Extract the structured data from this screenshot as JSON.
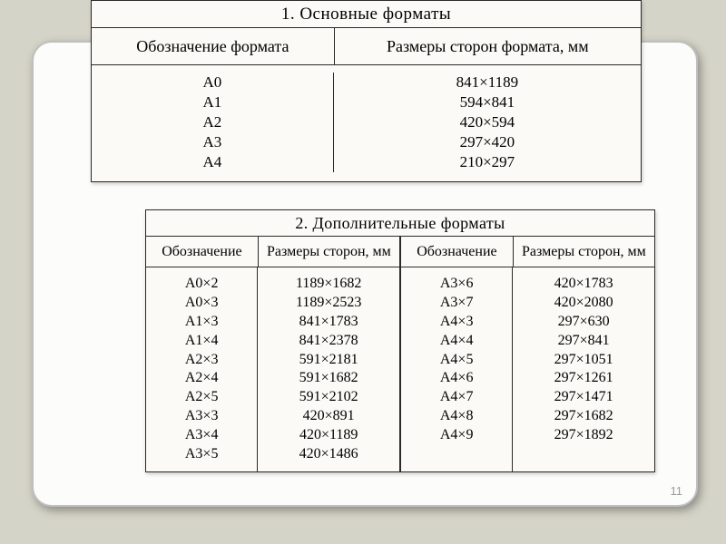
{
  "page_number": "11",
  "colors": {
    "page_bg": "#d5d4c8",
    "card_bg": "#fcfcfa",
    "card_border": "#bfbfbf",
    "table_bg": "#fbfaf6",
    "table_border": "#2a2a2a",
    "text": "#1a1a1a",
    "page_num": "#9a9a9a"
  },
  "typography": {
    "font_family": "Times New Roman, serif",
    "title_fontsize": 19,
    "header_fontsize": 18,
    "body_fontsize": 17
  },
  "table1": {
    "title": "1. Основные форматы",
    "columns": [
      "Обозначение формата",
      "Размеры сторон формата, мм"
    ],
    "rows": [
      [
        "A0",
        "841×1189"
      ],
      [
        "A1",
        "594×841"
      ],
      [
        "A2",
        "420×594"
      ],
      [
        "A3",
        "297×420"
      ],
      [
        "A4",
        "210×297"
      ]
    ]
  },
  "table2": {
    "title": "2. Дополнительные форматы",
    "columns": [
      "Обозначение",
      "Размеры сторон, мм",
      "Обозначение",
      "Размеры сторон, мм"
    ],
    "left_rows": [
      [
        "A0×2",
        "1189×1682"
      ],
      [
        "A0×3",
        "1189×2523"
      ],
      [
        "A1×3",
        "841×1783"
      ],
      [
        "A1×4",
        "841×2378"
      ],
      [
        "A2×3",
        "591×2181"
      ],
      [
        "A2×4",
        "591×1682"
      ],
      [
        "A2×5",
        "591×2102"
      ],
      [
        "A3×3",
        "420×891"
      ],
      [
        "A3×4",
        "420×1189"
      ],
      [
        "A3×5",
        "420×1486"
      ]
    ],
    "right_rows": [
      [
        "A3×6",
        "420×1783"
      ],
      [
        "A3×7",
        "420×2080"
      ],
      [
        "A4×3",
        "297×630"
      ],
      [
        "A4×4",
        "297×841"
      ],
      [
        "A4×5",
        "297×1051"
      ],
      [
        "A4×6",
        "297×1261"
      ],
      [
        "A4×7",
        "297×1471"
      ],
      [
        "A4×8",
        "297×1682"
      ],
      [
        "A4×9",
        "297×1892"
      ]
    ]
  }
}
